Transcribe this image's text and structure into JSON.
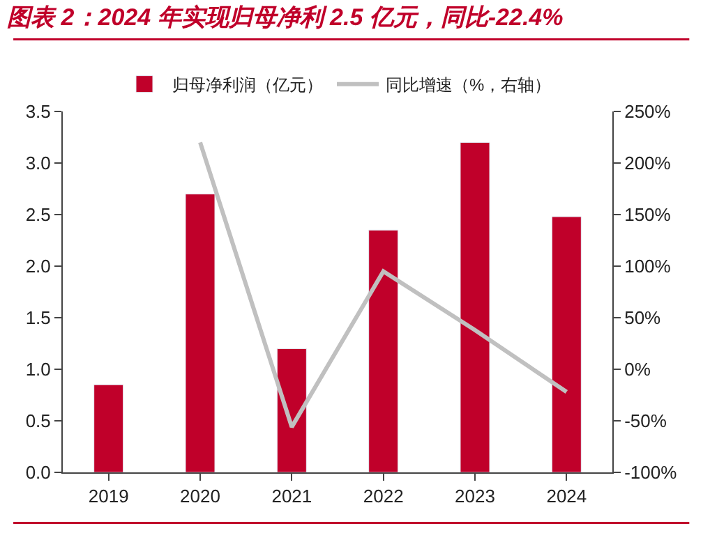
{
  "chart_data": {
    "type": "bar",
    "title": "图表 2：2024 年实现归母净利 2.5 亿元，同比-22.4%",
    "categories": [
      "2019",
      "2020",
      "2021",
      "2022",
      "2023",
      "2024"
    ],
    "series": [
      {
        "name": "归母净利润（亿元）",
        "color": "#c0002a",
        "values": [
          0.85,
          2.7,
          1.2,
          2.35,
          3.2,
          2.48
        ]
      },
      {
        "name": "同比增速（%，右轴）",
        "type": "line",
        "axis": "y2",
        "color": "#c0c0c0",
        "values": [
          null,
          220,
          -56,
          95,
          38,
          -22
        ]
      }
    ],
    "ylim": [
      0,
      3.5
    ],
    "yticks": [
      {
        "value": 0,
        "label": "0.0"
      },
      {
        "value": 0.5,
        "label": "0.5"
      },
      {
        "value": 1,
        "label": "1.0"
      },
      {
        "value": 1.5,
        "label": "1.5"
      },
      {
        "value": 2,
        "label": "2.0"
      },
      {
        "value": 2.5,
        "label": "2.5"
      },
      {
        "value": 3,
        "label": "3.0"
      },
      {
        "value": 3.5,
        "label": "3.5"
      }
    ],
    "y2lim": [
      -100,
      250
    ],
    "y2ticks": [
      {
        "value": -100,
        "label": "-100%"
      },
      {
        "value": -50,
        "label": "-50%"
      },
      {
        "value": 0,
        "label": "0%"
      },
      {
        "value": 50,
        "label": "50%"
      },
      {
        "value": 100,
        "label": "100%"
      },
      {
        "value": 150,
        "label": "150%"
      },
      {
        "value": 200,
        "label": "200%"
      },
      {
        "value": 250,
        "label": "250%"
      }
    ],
    "legend": "top",
    "marker": "none",
    "line_style": "solid"
  }
}
